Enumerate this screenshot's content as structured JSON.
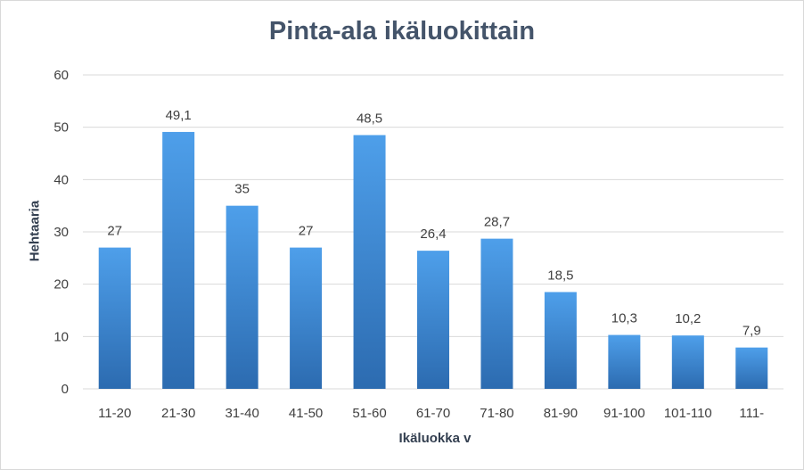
{
  "chart_data": {
    "type": "bar",
    "title": "Pinta-ala ikäluokittain",
    "xlabel": "Ikäluokka v",
    "ylabel": "Hehtaaria",
    "categories": [
      "11-20",
      "21-30",
      "31-40",
      "41-50",
      "51-60",
      "61-70",
      "71-80",
      "81-90",
      "91-100",
      "101-110",
      "111-"
    ],
    "values": [
      27,
      49.1,
      35,
      27,
      48.5,
      26.4,
      28.7,
      18.5,
      10.3,
      10.2,
      7.9
    ],
    "data_labels": [
      "27",
      "49,1",
      "35",
      "27",
      "48,5",
      "26,4",
      "28,7",
      "18,5",
      "10,3",
      "10,2",
      "7,9"
    ],
    "ylim": [
      0,
      60
    ],
    "yticks": [
      0,
      10,
      20,
      30,
      40,
      50,
      60
    ],
    "grid": true,
    "legend": "none",
    "colors": {
      "bar_top": "#4e9fea",
      "bar_bottom": "#2c6bb0",
      "grid": "#d9d9d9",
      "title": "#44546a"
    }
  }
}
